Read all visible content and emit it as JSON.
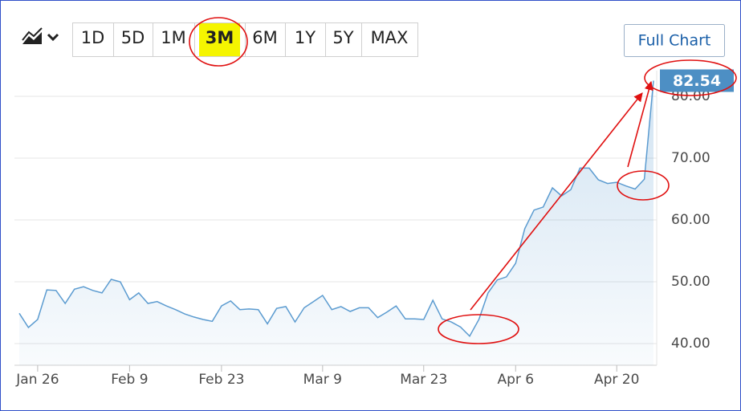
{
  "chart_data": {
    "type": "area",
    "categories": [
      null,
      null,
      "Jan 26",
      null,
      null,
      null,
      null,
      null,
      null,
      null,
      null,
      null,
      "Feb 9",
      null,
      null,
      null,
      null,
      null,
      null,
      null,
      null,
      null,
      "Feb 23",
      null,
      null,
      null,
      null,
      null,
      null,
      null,
      null,
      null,
      null,
      "Mar 9",
      null,
      null,
      null,
      null,
      null,
      null,
      null,
      null,
      null,
      null,
      "Mar 23",
      null,
      null,
      null,
      null,
      null,
      null,
      null,
      null,
      null,
      "Apr 6",
      null,
      null,
      null,
      null,
      null,
      null,
      null,
      null,
      null,
      null,
      "Apr 20",
      null,
      null,
      null,
      null
    ],
    "values": [
      44.9,
      42.6,
      43.9,
      48.7,
      48.6,
      46.5,
      48.8,
      49.2,
      48.6,
      48.2,
      50.4,
      50.0,
      47.1,
      48.2,
      46.5,
      46.8,
      46.1,
      45.5,
      44.8,
      44.3,
      43.9,
      43.6,
      46.1,
      46.9,
      45.5,
      45.6,
      45.5,
      43.2,
      45.7,
      46.0,
      43.5,
      45.8,
      46.8,
      47.8,
      45.5,
      46.0,
      45.2,
      45.8,
      45.8,
      44.2,
      45.1,
      46.1,
      44.0,
      44.0,
      43.9,
      47.0,
      44.0,
      43.5,
      42.7,
      41.2,
      43.9,
      48.2,
      50.3,
      50.8,
      53.0,
      58.6,
      61.6,
      62.1,
      65.2,
      63.9,
      64.9,
      68.4,
      68.4,
      66.5,
      65.9,
      66.1,
      65.5,
      65.0,
      66.6,
      82.54
    ],
    "color": "#5b9bd0",
    "ylim": [
      36.5,
      84.2
    ],
    "yticks": [
      {
        "value": 40,
        "label": "40.00"
      },
      {
        "value": 50,
        "label": "50.00"
      },
      {
        "value": 60,
        "label": "60.00"
      },
      {
        "value": 70,
        "label": "70.00"
      },
      {
        "value": 80,
        "label": "80.00"
      }
    ],
    "grid": true,
    "range_buttons": [
      "1D",
      "5D",
      "1M",
      "3M",
      "6M",
      "1Y",
      "5Y",
      "MAX"
    ],
    "selected_range_index": 3,
    "full_chart_button": "Full Chart"
  }
}
